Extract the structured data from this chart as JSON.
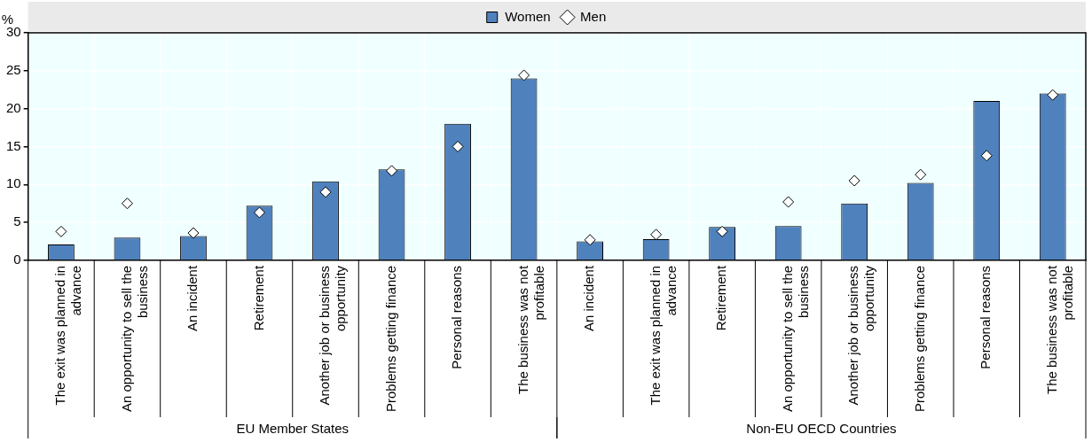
{
  "chart_data": {
    "type": "bar",
    "ylabel": "%",
    "categories": [
      "The exit was planned in advance",
      "An opportunity to sell the business",
      "An incident",
      "Retirement",
      "Another job or business opportunity",
      "Problems getting finance",
      "Personal reasons",
      "The business was not profitable",
      "An incident",
      "The exit was planned in advance",
      "Retirement",
      "An opportunity to sell the business",
      "Another job or business opportunity",
      "Problems getting finance",
      "Personal reasons",
      "The business was not profitable"
    ],
    "series": [
      {
        "name": "Women",
        "color": "#4f81bd",
        "values": [
          2.1,
          3.0,
          3.2,
          7.2,
          10.4,
          12.0,
          18.0,
          24.0,
          2.5,
          2.8,
          4.4,
          4.5,
          7.5,
          10.2,
          21.0,
          22.0
        ]
      },
      {
        "name": "Men",
        "type": "scatter",
        "marker": "diamond",
        "color": "#ffffff",
        "values": [
          3.8,
          7.5,
          3.6,
          6.3,
          9.0,
          11.8,
          15.0,
          24.4,
          2.7,
          3.4,
          3.8,
          7.7,
          10.5,
          11.3,
          13.8,
          21.8
        ]
      }
    ],
    "ylim": [
      0,
      30
    ],
    "yticks": [
      0,
      5,
      10,
      15,
      20,
      25,
      30
    ],
    "grid": true,
    "legend": "top",
    "annotations": [
      "EU Member States",
      "Non-EU OECD Countries"
    ]
  }
}
